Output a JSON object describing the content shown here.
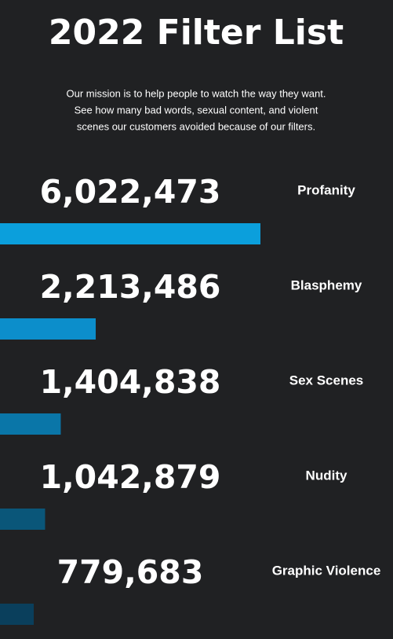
{
  "chart_data": {
    "type": "hbar",
    "title": "2022 Filter List",
    "subtitle_lines": [
      "Our mission is to help people to watch the way they want.",
      "See how many bad words, sexual content, and violent",
      "scenes our customers avoided because of our filters."
    ],
    "categories": [
      "Profanity",
      "Blasphemy",
      "Sex Scenes",
      "Nudity",
      "Graphic Violence"
    ],
    "values": [
      6022473,
      2213486,
      1404838,
      1042879,
      779683
    ],
    "value_labels": [
      "6,022,473",
      "2,213,486",
      "1,404,838",
      "1,042,879",
      "779,683"
    ],
    "colors": [
      "#0b9fdc",
      "#0c8ecb",
      "#0a76a8",
      "#0a5679",
      "#0a3f5c"
    ]
  }
}
